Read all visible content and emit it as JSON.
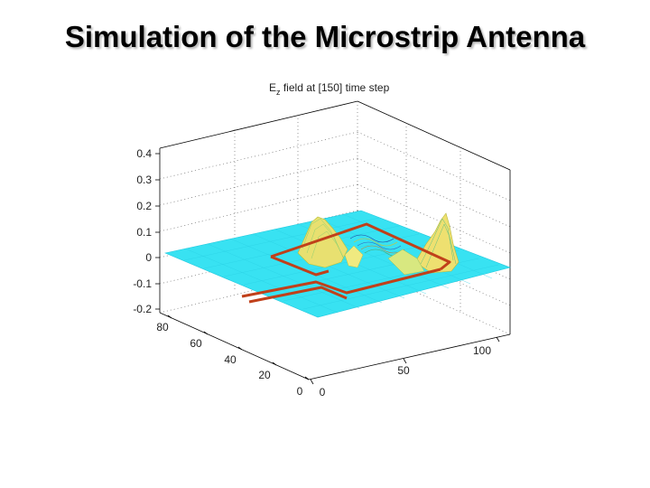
{
  "slide": {
    "title": "Simulation of the Microstrip Antenna"
  },
  "chart_data": {
    "type": "surface",
    "title": "E_z field at [150] time step",
    "title_main": "E",
    "title_sub": "z",
    "title_rest": " field at [150] time step",
    "zlim": [
      -0.2,
      0.4
    ],
    "z_ticks": [
      "0.4",
      "0.3",
      "0.2",
      "0.1",
      "0",
      "-0.1",
      "-0.2"
    ],
    "y_ticks": [
      "80",
      "60",
      "40",
      "20",
      "0"
    ],
    "x_ticks": [
      "0",
      "50",
      "100"
    ],
    "surface_color": "#33e0f0",
    "outline_color": "#c0401a",
    "peaks": [
      {
        "name": "left patch edge",
        "height": 0.15
      },
      {
        "name": "right patch edge",
        "height": 0.17
      },
      {
        "name": "center ripple",
        "height": 0.05
      }
    ]
  }
}
